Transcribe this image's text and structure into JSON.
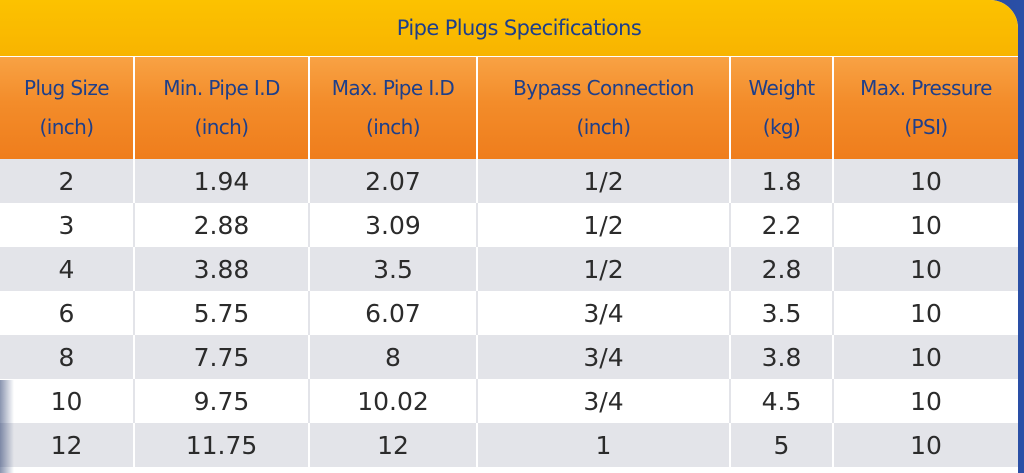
{
  "title": "Pipe Plugs Specifications",
  "colors": {
    "title_bar": "#f8b400",
    "header_bg": "#f38c2a",
    "header_text": "#1e3f8a",
    "row_alt": "#e3e4e9",
    "frame": "#1d3f8c"
  },
  "columns": [
    {
      "line1": "Plug Size",
      "line2": "(inch)"
    },
    {
      "line1": "Min. Pipe I.D",
      "line2": "(inch)"
    },
    {
      "line1": "Max. Pipe I.D",
      "line2": "(inch)"
    },
    {
      "line1": "Bypass Connection",
      "line2": "(inch)"
    },
    {
      "line1": "Weight",
      "line2": "(kg)"
    },
    {
      "line1": "Max. Pressure",
      "line2": "(PSI)"
    }
  ],
  "rows": [
    [
      "2",
      "1.94",
      "2.07",
      "1/2",
      "1.8",
      "10"
    ],
    [
      "3",
      "2.88",
      "3.09",
      "1/2",
      "2.2",
      "10"
    ],
    [
      "4",
      "3.88",
      "3.5",
      "1/2",
      "2.8",
      "10"
    ],
    [
      "6",
      "5.75",
      "6.07",
      "3/4",
      "3.5",
      "10"
    ],
    [
      "8",
      "7.75",
      "8",
      "3/4",
      "3.8",
      "10"
    ],
    [
      "10",
      "9.75",
      "10.02",
      "3/4",
      "4.5",
      "10"
    ],
    [
      "12",
      "11.75",
      "12",
      "1",
      "5",
      "10"
    ]
  ]
}
